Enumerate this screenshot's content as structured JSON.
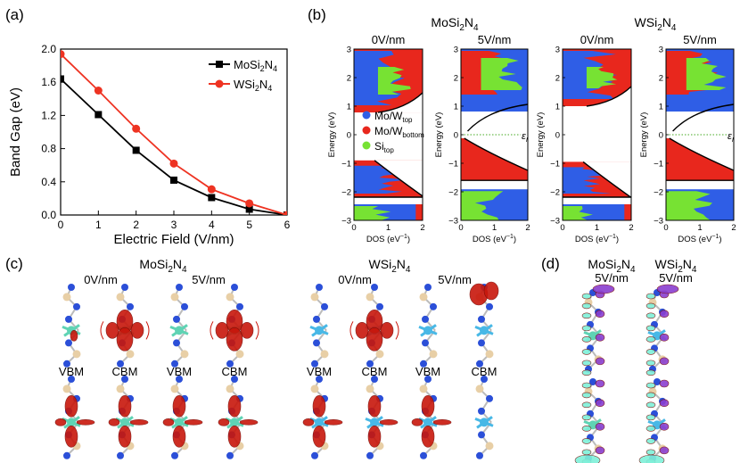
{
  "panel_labels": {
    "a": "(a)",
    "b": "(b)",
    "c": "(c)",
    "d": "(d)"
  },
  "colors": {
    "mos": "#000000",
    "ws": "#ee3322",
    "mo_top": "#2f5ee6",
    "mo_bottom": "#e8271d",
    "si_top": "#77e233",
    "atom_n": "#2b4fd8",
    "atom_si": "#e8cfa6",
    "atom_mo": "#5fd3b4",
    "atom_w": "#48b8e6",
    "iso_red": "#c8170c",
    "iso_purple": "#8a3fd0",
    "iso_cyan": "#7ff0d9"
  },
  "chart_data": [
    {
      "type": "line",
      "panel": "a",
      "title": "",
      "xlabel": "Electric Field (V/nm)",
      "ylabel": "Band Gap (eV)",
      "xlim": [
        0,
        6
      ],
      "ylim": [
        0,
        2.0
      ],
      "xticks": [
        "0",
        "1",
        "2",
        "3",
        "4",
        "5",
        "6"
      ],
      "yticks": [
        "0.0",
        "0.4",
        "0.8",
        "1.2",
        "1.6",
        "2.0"
      ],
      "legend_position": "top-right",
      "series": [
        {
          "name_main": "MoSi",
          "name_sub": "2",
          "name_mid": "N",
          "name_sub2": "4",
          "marker": "square",
          "x": [
            0,
            1,
            2,
            3,
            4,
            5,
            6
          ],
          "values": [
            1.64,
            1.21,
            0.78,
            0.42,
            0.21,
            0.07,
            0.0
          ]
        },
        {
          "name_main": "WSi",
          "name_sub": "2",
          "name_mid": "N",
          "name_sub2": "4",
          "marker": "circle",
          "x": [
            0,
            1,
            2,
            3,
            4,
            5,
            6
          ],
          "values": [
            1.94,
            1.5,
            1.04,
            0.62,
            0.31,
            0.14,
            0.0
          ]
        }
      ]
    },
    {
      "type": "area",
      "panel": "b",
      "ylabel": "Energy (eV)",
      "xlabel": "DOS (eV",
      "xlabel_sup": "−1",
      "xlabel_end": ")",
      "ylim": [
        -3,
        3
      ],
      "xlim": [
        0,
        2
      ],
      "yticks": [
        "3",
        "2",
        "1",
        "0",
        "−1",
        "−2",
        "−3"
      ],
      "xticks": [
        "0",
        "1",
        "2"
      ],
      "legend_position": "middle-left",
      "groups": [
        {
          "name": "MoSi",
          "sub": "2",
          "mid": "N",
          "sub2": "4"
        },
        {
          "name": "WSi",
          "sub": "2",
          "mid": "N",
          "sub2": "4"
        }
      ],
      "subplots": [
        {
          "title": "0V/nm",
          "material": "MoSi2N4",
          "gap_ev": [
            -0.9,
            0.78
          ],
          "field_marker": ""
        },
        {
          "title": "5V/nm",
          "material": "MoSi2N4",
          "gap_ev": [
            -0.1,
            0.0
          ],
          "field_marker": "ε"
        },
        {
          "title": "0V/nm",
          "material": "WSi2N4",
          "gap_ev": [
            -0.95,
            1.0
          ],
          "field_marker": ""
        },
        {
          "title": "5V/nm",
          "material": "WSi2N4",
          "gap_ev": [
            -0.05,
            0.05
          ],
          "field_marker": "ε"
        }
      ],
      "legend": [
        {
          "main": "Mo/W",
          "sub": "top",
          "color_key": "mo_top"
        },
        {
          "main": "Mo/W",
          "sub": "bottom",
          "color_key": "mo_bottom"
        },
        {
          "main": "Si",
          "sub": "top",
          "color_key": "si_top"
        }
      ],
      "field_sub": "I"
    }
  ],
  "panel_c": {
    "groups": [
      {
        "name": "MoSi",
        "sub": "2",
        "mid": "N",
        "sub2": "4"
      },
      {
        "name": "WSi",
        "sub": "2",
        "mid": "N",
        "sub2": "4"
      }
    ],
    "fields": [
      "0V/nm",
      "5V/nm",
      "0V/nm",
      "5V/nm"
    ],
    "states": [
      "VBM",
      "CBM",
      "VBM",
      "CBM",
      "VBM",
      "CBM",
      "VBM",
      "CBM"
    ]
  },
  "panel_d": {
    "groups": [
      {
        "name": "MoSi",
        "sub": "2",
        "mid": "N",
        "sub2": "4",
        "field": "5V/nm"
      },
      {
        "name": "WSi",
        "sub": "2",
        "mid": "N",
        "sub2": "4",
        "field": "5V/nm"
      }
    ]
  }
}
